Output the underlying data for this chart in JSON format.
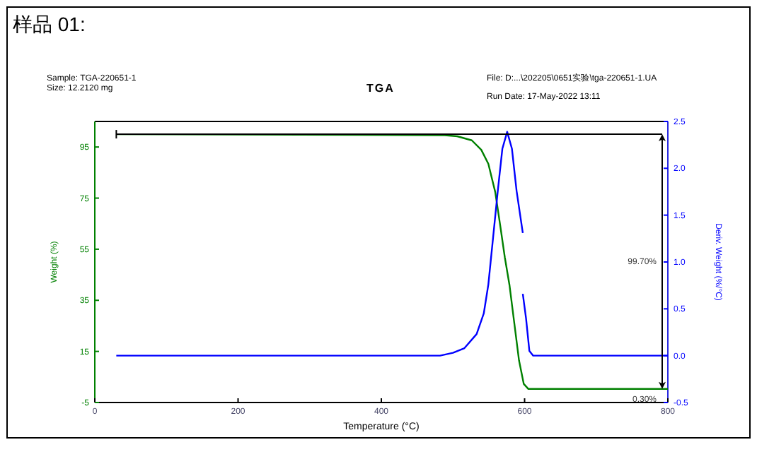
{
  "chart_data": {
    "type": "line",
    "title": "样品 01:",
    "subtitle": "TGA",
    "xlabel": "Temperature (°C)",
    "ylabel": "Weight (%)",
    "y2label": "Deriv. Weight (%/°C)",
    "xlim": [
      0,
      800
    ],
    "xticks": [
      0,
      200,
      400,
      600,
      800
    ],
    "ylim": [
      -5,
      105
    ],
    "yticks": [
      -5,
      15,
      35,
      55,
      75,
      95
    ],
    "y2lim": [
      -0.5,
      2.5
    ],
    "y2ticks": [
      -0.5,
      {
        "value": 0,
        "label": "0.0"
      },
      0.5,
      {
        "value": 1,
        "label": "1.0"
      },
      1.5,
      {
        "value": 2,
        "label": "2.0"
      },
      2.5
    ],
    "grid": false,
    "annotations": [
      "Sample: TGA-220651-1",
      "Size:  12.2120 mg",
      "File: D:...\\202205\\0651实验\\tga-220651-1.UA",
      "Run Date: 17-May-2022 13:11",
      "99.70%",
      "0.30%"
    ],
    "ref_lines": [
      {
        "axis": "y",
        "value": 100,
        "color": "#000000"
      }
    ],
    "series": [
      {
        "color": "#008000",
        "x": [
          30,
          488.7,
          506,
          526.3,
          539.5,
          549.4,
          559,
          565.8,
          572.4,
          579,
          585.6,
          592.2,
          598.8,
          605.3,
          800
        ],
        "values": [
          100,
          99.6,
          99.2,
          97.6,
          93.9,
          88.4,
          77.4,
          64.6,
          51.8,
          40.8,
          26.1,
          11.5,
          2.3,
          0.3,
          0.3
        ]
      },
      {
        "color": "#0000ff",
        "axis": "y2",
        "x": [
          30,
          482,
          500,
          516,
          533,
          543,
          549.4,
          556,
          562.6,
          569,
          575.7,
          582.3,
          588.8,
          597.5
        ],
        "values": [
          0,
          0,
          0.03,
          0.08,
          0.23,
          0.45,
          0.76,
          1.26,
          1.76,
          2.21,
          2.39,
          2.21,
          1.76,
          1.31
        ]
      },
      {
        "color": "#0000ff",
        "axis": "y2",
        "x": [
          597.5,
          602,
          606.7,
          612,
          800
        ],
        "values": [
          0.66,
          0.4,
          0.05,
          0,
          0
        ]
      }
    ]
  }
}
